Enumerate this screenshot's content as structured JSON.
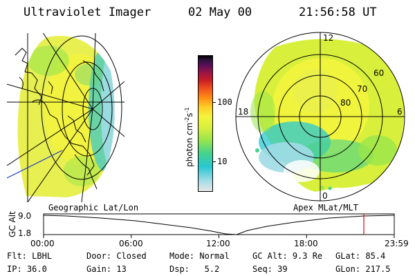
{
  "header": {
    "instrument": "Ultraviolet Imager",
    "date": "02 May 00",
    "time": "21:56:58 UT"
  },
  "panels": {
    "left_label": "Geographic Lat/Lon",
    "right_label": "Apex MLat/MLT",
    "mlt_labels": [
      "12",
      "18",
      "6",
      "0"
    ],
    "mlat_labels": [
      "60",
      "70",
      "80"
    ]
  },
  "colorbar": {
    "unit_label": "photon cm",
    "unit_exp1": "-2",
    "unit_s": "s",
    "unit_exp2": "-1",
    "ticks": [
      "100",
      "10"
    ],
    "scale": "log",
    "colors": [
      "#e6e6e6",
      "#a0dce6",
      "#28c8d2",
      "#46d28c",
      "#9ae64b",
      "#d8ef3c",
      "#f4f43c",
      "#ffcf28",
      "#ff8c14",
      "#f0501e",
      "#c81e28",
      "#961446",
      "#5a0f5a",
      "#2d143c",
      "#000000"
    ]
  },
  "timeline": {
    "axis_title": "GC Alt",
    "y_ticks": [
      "9.0",
      "1.8"
    ],
    "x_ticks": [
      "00:00",
      "06:00",
      "12:00",
      "18:00",
      "23:59"
    ],
    "marker_time": "21:56:58"
  },
  "info": {
    "row1": [
      {
        "label": "Flt:",
        "value": "LBHL"
      },
      {
        "label": "Door:",
        "value": "Closed"
      },
      {
        "label": "Mode:",
        "value": "Normal"
      },
      {
        "label": "GC Alt:",
        "value": "9.3 Re"
      },
      {
        "label": "GLat:",
        "value": "85.4"
      }
    ],
    "row2": [
      {
        "label": "IP:",
        "value": "36.0"
      },
      {
        "label": "Gain:",
        "value": "13"
      },
      {
        "label": "Dsp:",
        "value": "5.2"
      },
      {
        "label": "Seq:",
        "value": "39"
      },
      {
        "label": "GLon:",
        "value": "217.5"
      }
    ]
  }
}
